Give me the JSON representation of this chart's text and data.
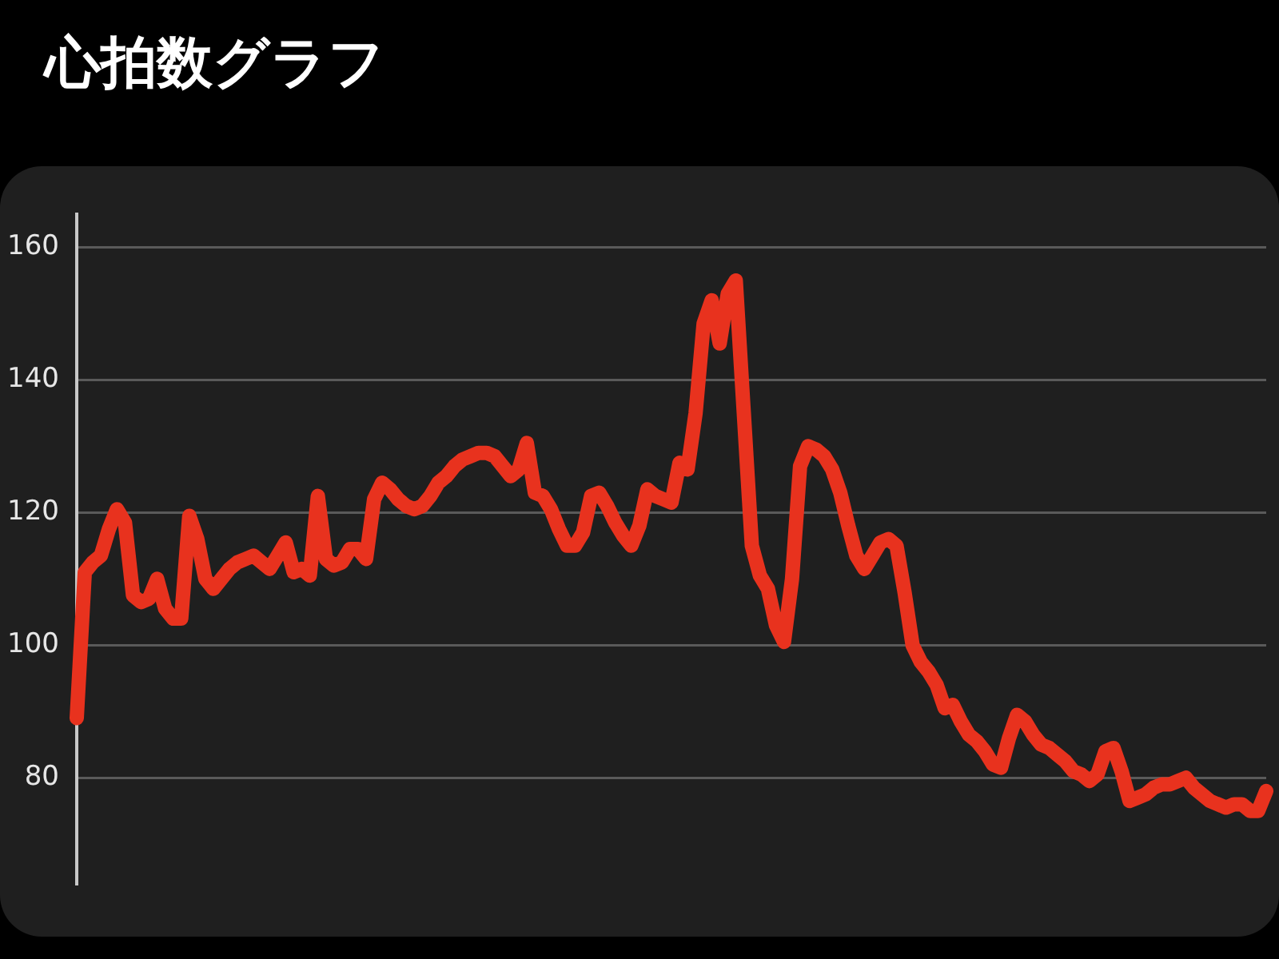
{
  "chart_data": {
    "type": "line",
    "title": "心拍数グラフ",
    "categories": [
      null,
      null,
      null,
      null,
      null,
      null,
      null,
      null,
      null,
      null,
      null,
      null,
      null,
      null,
      null,
      null,
      null,
      null,
      null,
      null,
      null,
      null,
      null,
      null,
      null,
      null,
      null,
      null,
      null,
      null,
      null,
      null,
      null,
      null,
      null,
      null,
      null,
      null,
      null,
      null,
      null,
      null,
      null,
      null,
      null,
      null,
      null,
      null,
      null,
      null,
      null,
      null,
      null,
      null,
      null,
      null,
      null,
      null,
      null,
      null,
      null,
      null,
      null,
      null,
      null,
      null,
      null,
      null,
      null,
      null,
      null,
      null,
      null,
      null,
      null,
      null,
      null,
      null,
      null,
      null,
      null,
      null,
      null,
      null,
      null,
      null,
      null,
      null,
      null,
      null,
      null,
      null,
      null,
      null,
      null,
      null,
      null,
      null,
      null,
      null,
      null,
      null,
      null,
      null,
      null,
      null,
      null,
      null,
      null,
      null,
      null,
      null,
      null,
      null,
      null,
      null,
      null,
      null,
      null,
      null,
      null,
      null,
      null,
      null,
      null,
      null,
      null,
      null,
      null,
      null,
      null,
      null,
      null,
      null,
      null,
      null,
      null,
      null,
      null,
      null,
      null,
      null,
      null,
      null,
      null,
      null,
      null,
      null,
      null
    ],
    "series": [
      {
        "color": "#e8321e",
        "values": [
          89,
          111,
          112.5,
          113.5,
          117.5,
          120.5,
          118.5,
          107.5,
          106.5,
          107,
          110,
          105.5,
          104,
          104,
          119.5,
          116,
          110,
          108.5,
          110,
          111.5,
          112.5,
          113,
          113.5,
          112.5,
          111.5,
          113.5,
          115.5,
          111,
          111.5,
          110.5,
          122.5,
          113,
          112,
          112.5,
          114.5,
          114.5,
          113,
          122,
          124.5,
          123.5,
          122,
          121,
          120.5,
          121,
          122.5,
          124.5,
          125.5,
          127,
          128,
          128.5,
          129,
          129,
          128.5,
          127,
          125.5,
          126.5,
          130.5,
          123,
          122.5,
          120.5,
          117.5,
          115,
          115,
          117,
          122.5,
          123,
          121,
          118.5,
          116.5,
          115,
          118,
          123.5,
          122.5,
          122,
          121.5,
          127.5,
          126.5,
          135,
          148.5,
          152,
          145.5,
          153,
          155,
          135,
          115,
          110.5,
          108.5,
          103,
          100.5,
          110,
          127,
          130,
          129.5,
          128.5,
          126.5,
          123,
          118,
          113.5,
          111.5,
          113.5,
          115.5,
          116,
          115,
          108,
          100,
          97.5,
          96,
          94,
          90.5,
          91,
          88.5,
          86.5,
          85.5,
          84,
          82,
          81.5,
          86,
          89.5,
          88.5,
          86.5,
          85,
          84.5,
          83.5,
          82.5,
          81,
          80.5,
          79.5,
          80.5,
          84,
          84.5,
          81,
          76.5,
          77,
          77.5,
          78.5,
          79,
          79,
          79.5,
          80,
          78.5,
          77.5,
          76.5,
          76,
          75.5,
          76,
          76,
          75,
          75,
          78
        ]
      }
    ],
    "ylim": [
      64,
      165
    ],
    "yticks": [
      80,
      100,
      120,
      140,
      160
    ],
    "grid": "y",
    "tick_labels": "y",
    "marker": "none",
    "line_style": "solid"
  }
}
